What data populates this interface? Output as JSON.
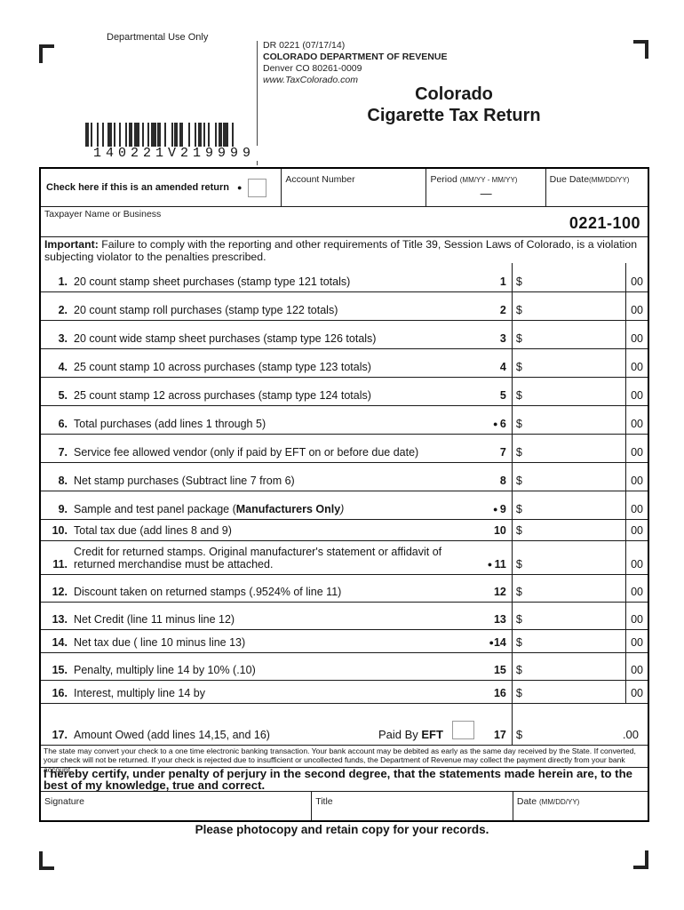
{
  "page": {
    "departmental_use": "Departmental Use Only",
    "form_code": "DR 0221 (07/17/14)",
    "agency": "COLORADO DEPARTMENT OF REVENUE",
    "agency_address": "Denver CO 80261-0009",
    "agency_website": "www.TaxColorado.com",
    "title_line1": "Colorado",
    "title_line2": "Cigarette Tax Return",
    "barcode_text": "140221V219999",
    "form_number": "0221-100",
    "photocopy_note": "Please photocopy and retain copy for your records."
  },
  "header_fields": {
    "amended_label": "Check here if this is an amended return",
    "amended_dot": "●",
    "account_label": "Account Number",
    "period_label": "Period",
    "period_hint": "(MM/YY - MM/YY)",
    "period_separator": "—",
    "due_date_label": "Due Date",
    "due_date_hint": "(MM/DD/YY)",
    "taxpayer_label": "Taxpayer Name or Business"
  },
  "important_notice": {
    "lead": "Important:",
    "text": " Failure to comply with the reporting and other requirements of Title 39, Session Laws of Colorado, is a violation subjecting violator to the penalties prescribed."
  },
  "lines": [
    {
      "num": "1.",
      "text": "20 count stamp sheet purchases (stamp type 121 totals)",
      "bullet": "",
      "ref": "1",
      "cents": "00",
      "h": "h32"
    },
    {
      "num": "2.",
      "text": "20 count stamp roll purchases (stamp type 122 totals)",
      "bullet": "",
      "ref": "2",
      "cents": "00",
      "h": "h32"
    },
    {
      "num": "3.",
      "text": "20 count wide stamp sheet purchases (stamp type 126 totals)",
      "bullet": "",
      "ref": "3",
      "cents": "00",
      "h": "h32"
    },
    {
      "num": "4.",
      "text": "25 count stamp 10 across purchases (stamp type 123 totals)",
      "bullet": "",
      "ref": "4",
      "cents": "00",
      "h": "h32"
    },
    {
      "num": "5.",
      "text": "25 count stamp 12 across purchases (stamp type 124 totals)",
      "bullet": "",
      "ref": "5",
      "cents": "00",
      "h": "h32"
    },
    {
      "num": "6.",
      "text": "Total purchases (add lines 1 through 5)",
      "bullet": "● ",
      "ref": "6",
      "cents": "00",
      "h": "h32"
    },
    {
      "num": "7.",
      "text": "Service fee allowed vendor (only if paid by EFT on or before due date)",
      "bullet": "",
      "ref": "7",
      "cents": "00",
      "h": "h32"
    },
    {
      "num": "8.",
      "text": "Net stamp purchases (Subtract line 7 from 6)",
      "bullet": "",
      "ref": "8",
      "cents": "00",
      "h": "h32"
    },
    {
      "num": "9.",
      "parts": [
        {
          "t": "Sample and test panel package ("
        },
        {
          "t": "Manufacturers Only",
          "b": true
        },
        {
          "t": ")",
          "i": true
        }
      ],
      "bullet": "● ",
      "ref": "9",
      "cents": "00",
      "h": "h32"
    },
    {
      "num": "10.",
      "text": "Total tax due (add lines 8 and 9)",
      "bullet": "",
      "ref": "10",
      "cents": "00",
      "h": "h24"
    },
    {
      "num": "11.",
      "text": "Credit for returned stamps. Original manufacturer's statement or affidavit of",
      "text2": "returned merchandise must be attached.",
      "bullet": "● ",
      "ref": "11",
      "cents": "00",
      "h": "h38"
    },
    {
      "num": "12.",
      "text": "Discount taken on returned stamps (.9524% of line 11)",
      "bullet": "",
      "ref": "12",
      "cents": "00",
      "h": "h31"
    },
    {
      "num": "13.",
      "text": "Net Credit (line 11 minus line 12)",
      "bullet": "",
      "ref": "13",
      "cents": "00",
      "h": "h31"
    },
    {
      "num": "14.",
      "text": "Net tax due ( line 10 minus line 13)",
      "bullet": "●",
      "ref": "14",
      "cents": "00",
      "h": "h26"
    },
    {
      "num": "15.",
      "text": "Penalty, multiply line 14 by 10% (.10)",
      "bullet": "",
      "ref": "15",
      "cents": "00",
      "h": "h31"
    },
    {
      "num": "16.",
      "text": "Interest, multiply line 14 by",
      "bullet": "",
      "ref": "16",
      "cents": "00",
      "h": "h26"
    }
  ],
  "line17": {
    "num": "17.",
    "text": "Amount Owed (add lines 14,15, and 16)",
    "paid_by": "Paid By ",
    "eft": "EFT",
    "ref": "17",
    "dollar": "$",
    "cents": ".00"
  },
  "dollar_sign": "$",
  "fine_print": "The state may convert your check to a one time electronic banking transaction. Your bank account may be debited as early as the same day received by the State. If converted, your check will not be returned. If your check is rejected due to insufficient or uncollected funds, the Department of Revenue may collect the payment directly from your bank account.",
  "certification": "I hereby certify, under penalty of perjury in the second degree, that the statements made herein are, to the best of my knowledge, true and correct.",
  "signature_section": {
    "signature_label": "Signature",
    "title_label": "Title",
    "date_label": "Date ",
    "date_hint": "(MM/DD/YY)"
  }
}
